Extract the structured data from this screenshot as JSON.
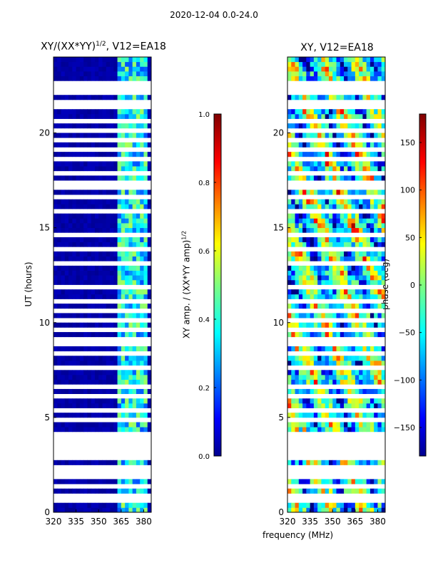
{
  "header": {
    "suptitle": "2020-12-04 0.0-24.0"
  },
  "chart_data": [
    {
      "type": "heatmap",
      "title_main": "XY/(XX*YY)",
      "title_exp": "1/2",
      "title_suffix": ", V12=EA18",
      "xlabel": "",
      "ylabel": "UT (hours)",
      "xlim": [
        320,
        385
      ],
      "ylim": [
        0,
        24
      ],
      "xticks": [
        320,
        335,
        350,
        365,
        380
      ],
      "yticks": [
        0,
        5,
        10,
        15,
        20
      ],
      "colorbar": {
        "label_main": "XY amp. / (XX*YY amp)",
        "label_exp": "1/2",
        "range": [
          0.0,
          1.0
        ],
        "ticks": [
          "0.0",
          "0.2",
          "0.4",
          "0.6",
          "0.8",
          "1.0"
        ],
        "colormap": "jet"
      },
      "description": "Mostly low amplitude (dark blue) below 362 MHz; bright bands 362-382 MHz"
    },
    {
      "type": "heatmap",
      "title": "XY, V12=EA18",
      "xlabel": "frequency (MHz)",
      "ylabel": "",
      "xlim": [
        320,
        385
      ],
      "ylim": [
        0,
        24
      ],
      "xticks": [
        320,
        335,
        350,
        365,
        380
      ],
      "yticks": [
        0,
        5,
        10,
        15,
        20
      ],
      "colorbar": {
        "label": "phase (deg)",
        "range": [
          -180,
          180
        ],
        "ticks": [
          "−150",
          "−100",
          "−50",
          "0",
          "50",
          "100",
          "150"
        ],
        "colormap": "jet"
      }
    }
  ],
  "colors": {
    "background": "#ffffff",
    "flagged": "#ffffff",
    "low": "#00008f"
  }
}
